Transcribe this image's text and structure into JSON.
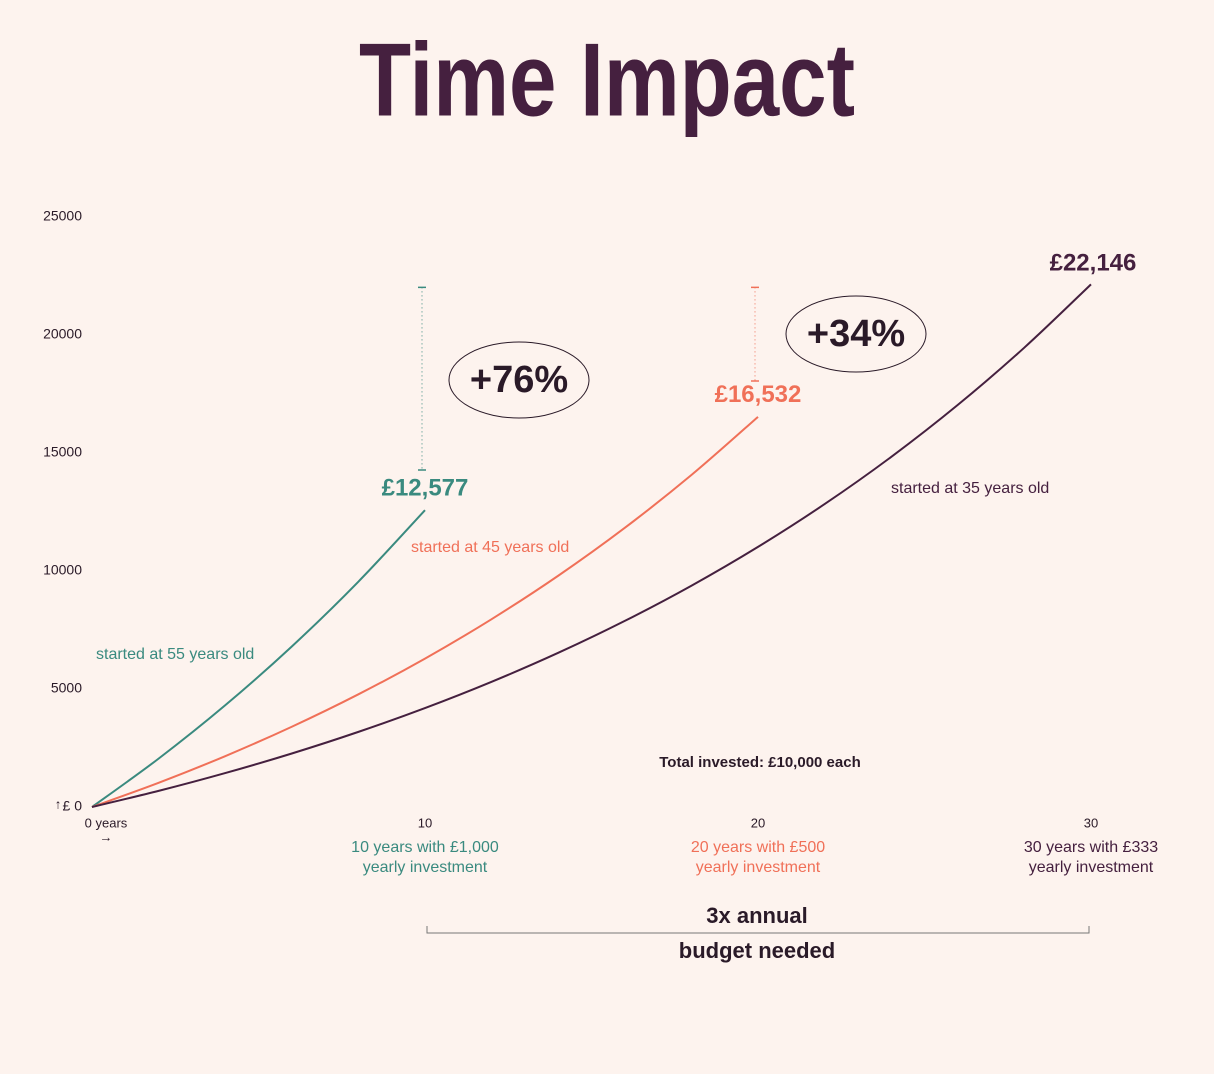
{
  "chart_data": {
    "type": "line",
    "title": "Time Impact",
    "xlim": [
      0,
      30
    ],
    "ylim": [
      0,
      25000
    ],
    "xticks": [
      {
        "value": 0,
        "label": "0 years"
      },
      10,
      20,
      30
    ],
    "yticks": [
      {
        "value": 0,
        "label": "£ 0"
      },
      5000,
      10000,
      15000,
      20000,
      25000
    ],
    "x_arrow": "→",
    "y_arrow": "↑",
    "grid": false,
    "series": [
      {
        "name": "started at 55 years old",
        "color": "#3a8a7f",
        "x": [
          0,
          2,
          4,
          6,
          8,
          10
        ],
        "values": [
          0,
          2050,
          4310,
          6802,
          9549,
          12577
        ],
        "value_labels": [
          null,
          null,
          null,
          null,
          null,
          "£12,577"
        ],
        "note": [
          "10 years with £1,000",
          "yearly investment"
        ]
      },
      {
        "name": "started at 45 years old",
        "color": "#f07058",
        "x": [
          0,
          2,
          4,
          6,
          8,
          10,
          12,
          14,
          16,
          18,
          20
        ],
        "values": [
          0,
          1025,
          2155,
          3401,
          4775,
          6289,
          7959,
          9799,
          11829,
          14066,
          16532
        ],
        "value_labels": [
          null,
          null,
          null,
          null,
          null,
          null,
          null,
          null,
          null,
          null,
          "£16,532"
        ],
        "note": [
          "20 years with £500",
          "yearly investment"
        ]
      },
      {
        "name": "started at 35 years old",
        "color": "#45203f",
        "x": [
          0,
          2,
          4,
          6,
          8,
          10,
          12,
          14,
          16,
          18,
          20,
          22,
          24,
          26,
          28,
          30
        ],
        "values": [
          0,
          683,
          1437,
          2267,
          3183,
          4193,
          5306,
          6533,
          7886,
          9377,
          11022,
          12835,
          14834,
          17038,
          19468,
          22146
        ],
        "value_labels": [
          null,
          null,
          null,
          null,
          null,
          null,
          null,
          null,
          null,
          null,
          null,
          null,
          null,
          null,
          null,
          "£22,146"
        ],
        "note": [
          "30 years with £333",
          "yearly investment"
        ]
      }
    ],
    "annotations": [
      "+76%",
      "+34%",
      "Total invested: £10,000 each"
    ],
    "budget_note": [
      "3x annual",
      "budget needed"
    ]
  }
}
